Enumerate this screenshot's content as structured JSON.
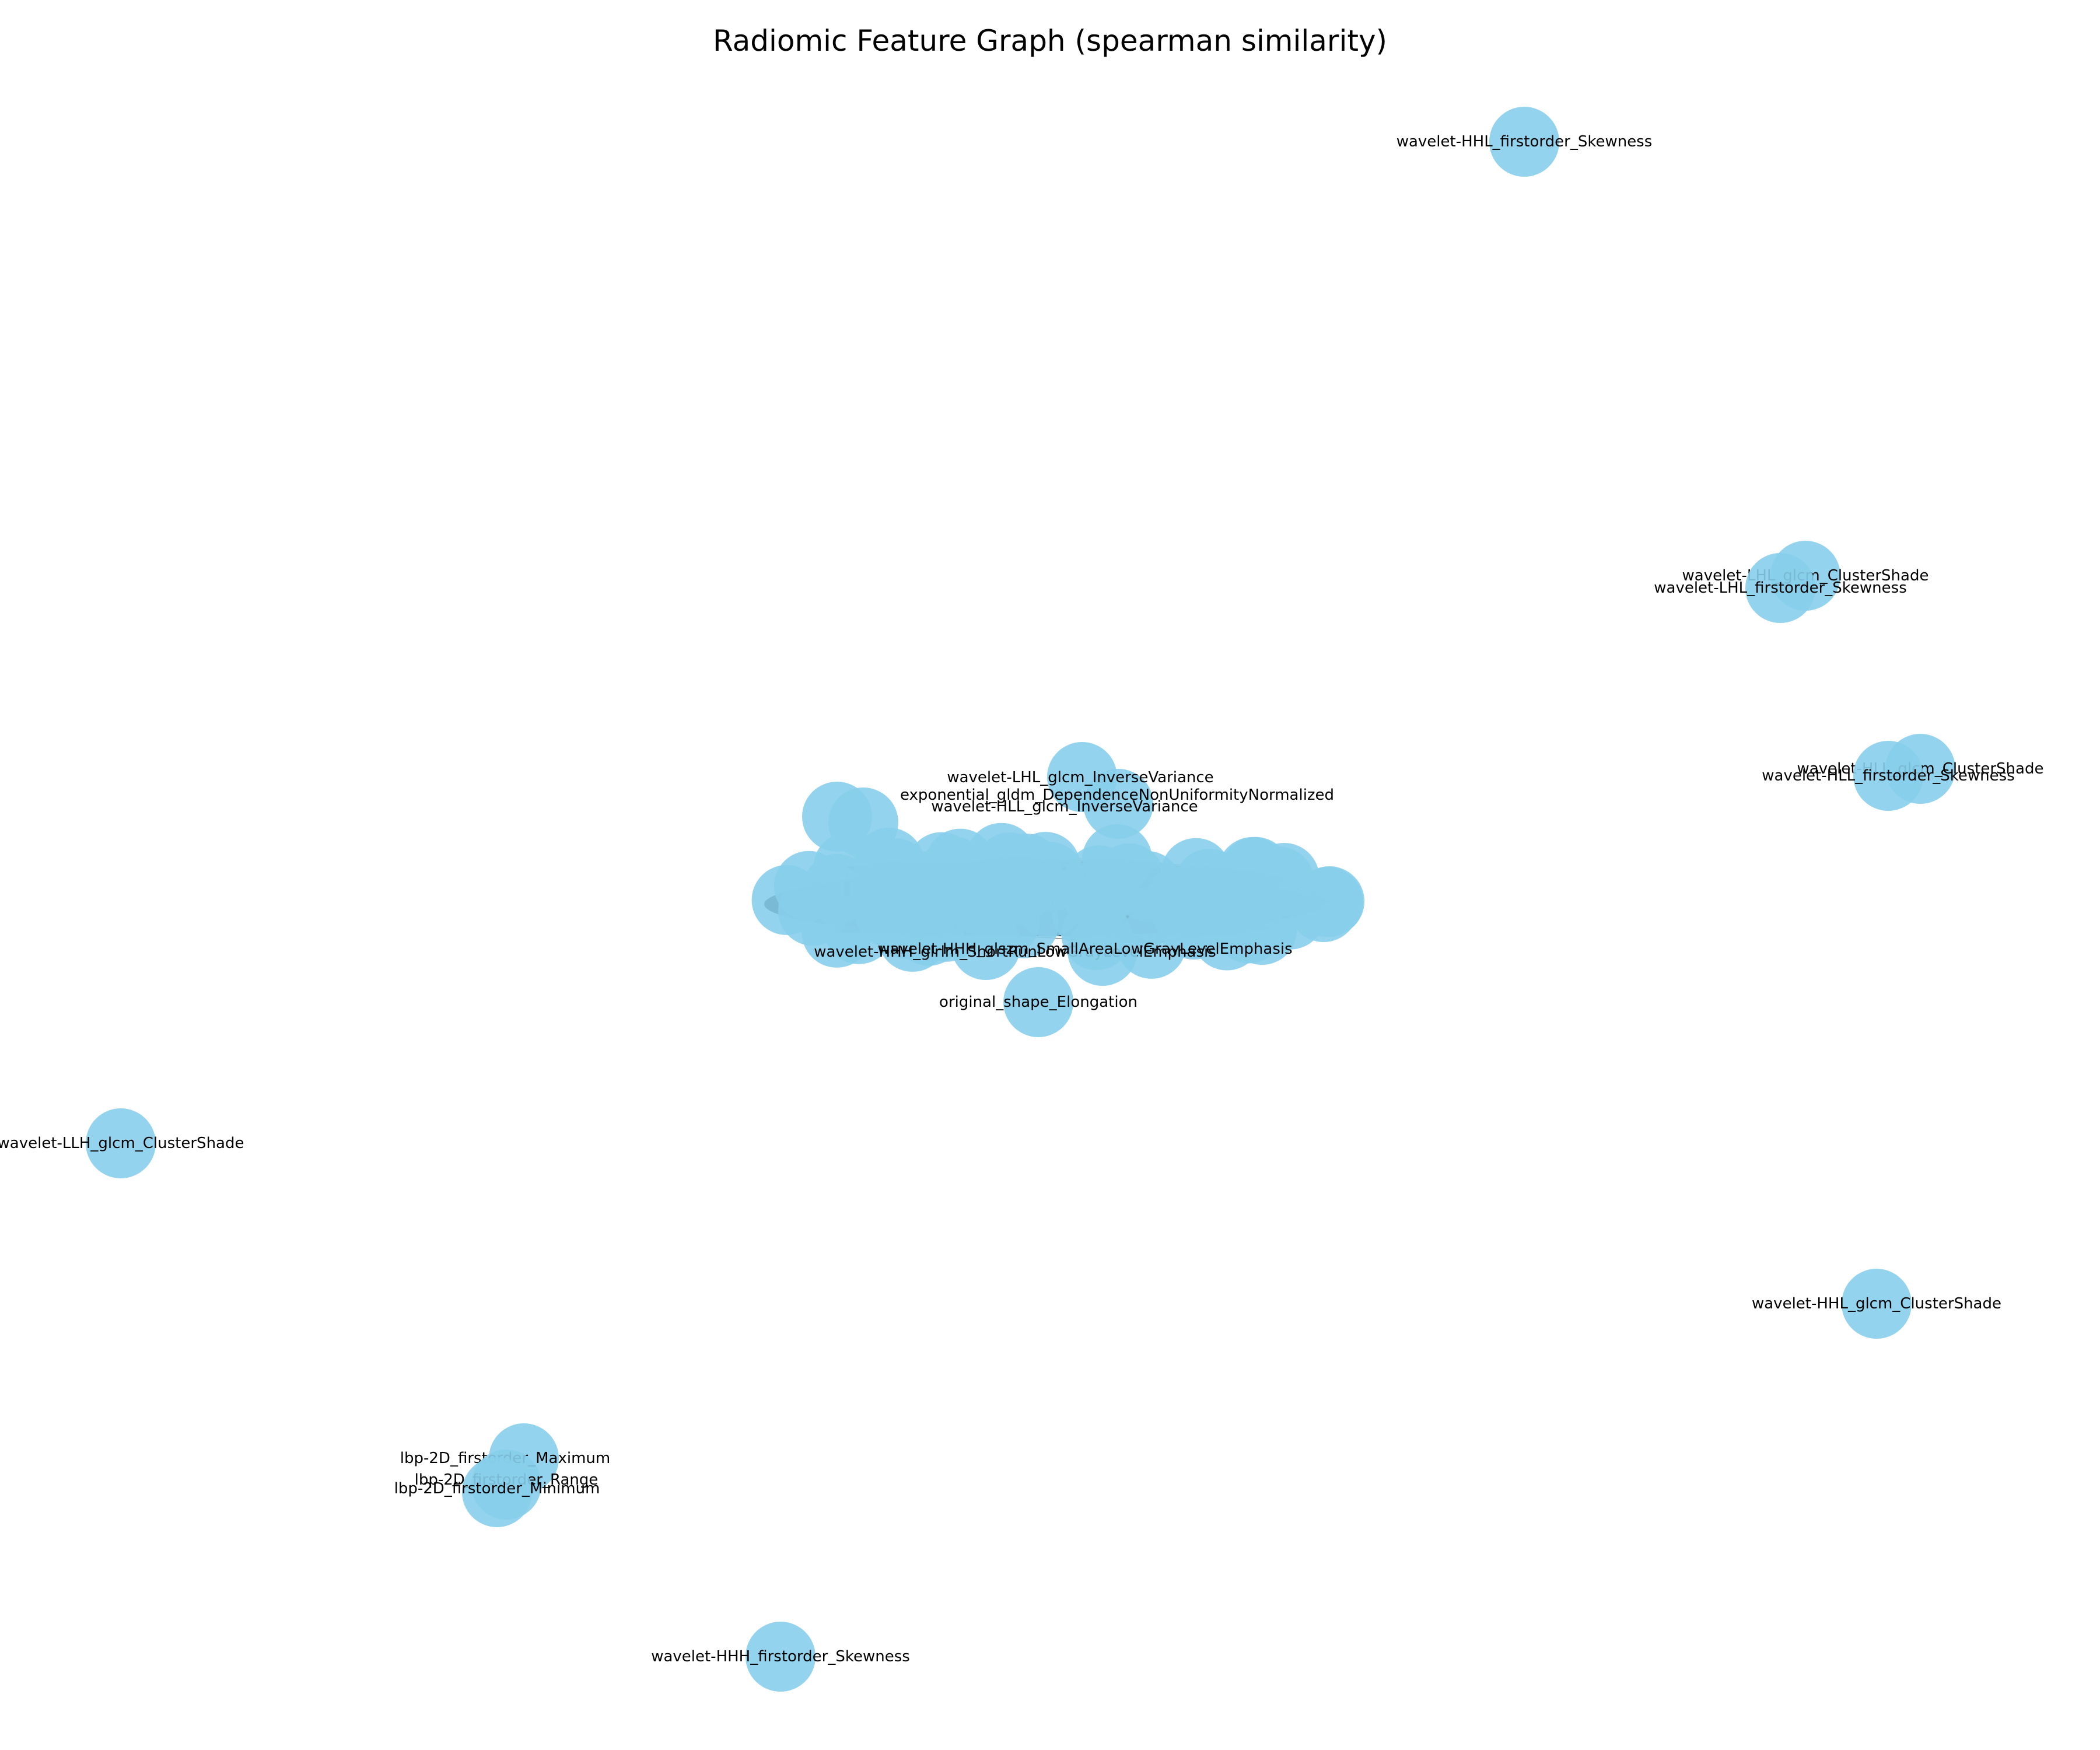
{
  "title": "Radiomic Feature Graph (spearman similarity)",
  "node_color": "#87ceeb",
  "edge_color": "#000000",
  "peripheral_nodes": [
    "wavelet-HHL_firstorder_Skewness",
    "wavelet-LHL_glcm_ClusterShade",
    "wavelet-LHL_firstorder_Skewness",
    "wavelet-HLL_glcm_ClusterShade",
    "wavelet-HLL_firstorder_Skewness",
    "wavelet-LLH_glcm_ClusterShade",
    "wavelet-HHL_glcm_ClusterShade",
    "lbp-2D_firstorder_Maximum",
    "lbp-2D_firstorder_Range",
    "lbp-2D_firstorder_Minimum",
    "wavelet-HHH_firstorder_Skewness"
  ],
  "legible_cluster_nodes": [
    "wavelet-LHL_glcm_InverseVariance",
    "exponential_gldm_DependenceNonUniformityNormalized",
    "wavelet-HLL_glcm_InverseVariance",
    "wavelet-HHH_glrlm_ShortRunLowGrayLevelEmphasis",
    "wavelet-HHH_glszm_SmallAreaLowGrayLevelEmphasis",
    "original_shape_Elongation"
  ]
}
